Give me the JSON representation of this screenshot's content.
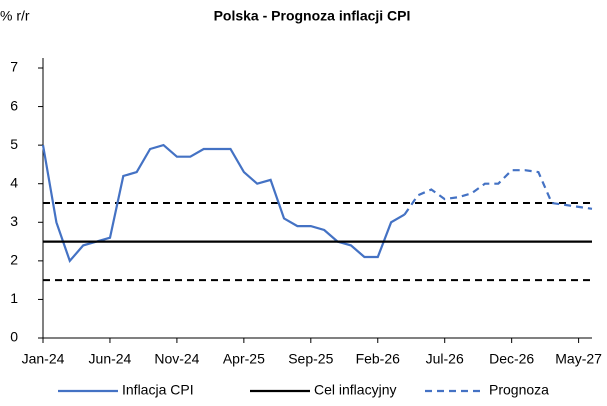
{
  "chart_data": {
    "type": "line",
    "title": "Polska - Prognoza inflacji CPI",
    "y_label": "% r/r",
    "categories": [
      "Jan-24",
      null,
      null,
      null,
      null,
      "Jun-24",
      null,
      null,
      null,
      null,
      "Nov-24",
      null,
      null,
      null,
      null,
      "Apr-25",
      null,
      null,
      null,
      null,
      "Sep-25",
      null,
      null,
      null,
      null,
      "Feb-26",
      null,
      null,
      null,
      null,
      "Jul-26",
      null,
      null,
      null,
      null,
      "Dec-26",
      null,
      null,
      null,
      null,
      "May-27",
      null
    ],
    "series": [
      {
        "name": "Inflacja CPI",
        "color": "#4472c4",
        "dash": false,
        "values": [
          5.0,
          3.0,
          2.0,
          2.4,
          2.5,
          2.6,
          4.2,
          4.3,
          4.9,
          5.0,
          4.7,
          4.7,
          4.9,
          4.9,
          4.9,
          4.3,
          4.0,
          4.1,
          3.1,
          2.9,
          2.9,
          2.8,
          2.5,
          2.4,
          2.1,
          2.1,
          3.0,
          3.2,
          null,
          null,
          null,
          null,
          null,
          null,
          null,
          null,
          null,
          null,
          null,
          null,
          null,
          null
        ]
      },
      {
        "name": "Cel inflacyjny",
        "color": "#000000",
        "dash": false,
        "values": [
          2.5,
          2.5,
          2.5,
          2.5,
          2.5,
          2.5,
          2.5,
          2.5,
          2.5,
          2.5,
          2.5,
          2.5,
          2.5,
          2.5,
          2.5,
          2.5,
          2.5,
          2.5,
          2.5,
          2.5,
          2.5,
          2.5,
          2.5,
          2.5,
          2.5,
          2.5,
          2.5,
          2.5,
          2.5,
          2.5,
          2.5,
          2.5,
          2.5,
          2.5,
          2.5,
          2.5,
          2.5,
          2.5,
          2.5,
          2.5,
          2.5,
          2.5
        ]
      },
      {
        "name": "Prognoza",
        "color": "#4472c4",
        "dash": true,
        "values": [
          null,
          null,
          null,
          null,
          null,
          null,
          null,
          null,
          null,
          null,
          null,
          null,
          null,
          null,
          null,
          null,
          null,
          null,
          null,
          null,
          null,
          null,
          null,
          null,
          null,
          null,
          null,
          3.2,
          3.7,
          3.85,
          3.6,
          3.65,
          3.75,
          4.0,
          4.0,
          4.35,
          4.35,
          4.3,
          3.5,
          3.45,
          3.4,
          3.35
        ]
      }
    ],
    "tolerance_band": [
      1.5,
      3.5
    ],
    "band_color": "#000000",
    "ylim": [
      0,
      7
    ],
    "yticks": [
      0,
      1,
      2,
      3,
      4,
      5,
      6,
      7
    ],
    "grid": false
  }
}
